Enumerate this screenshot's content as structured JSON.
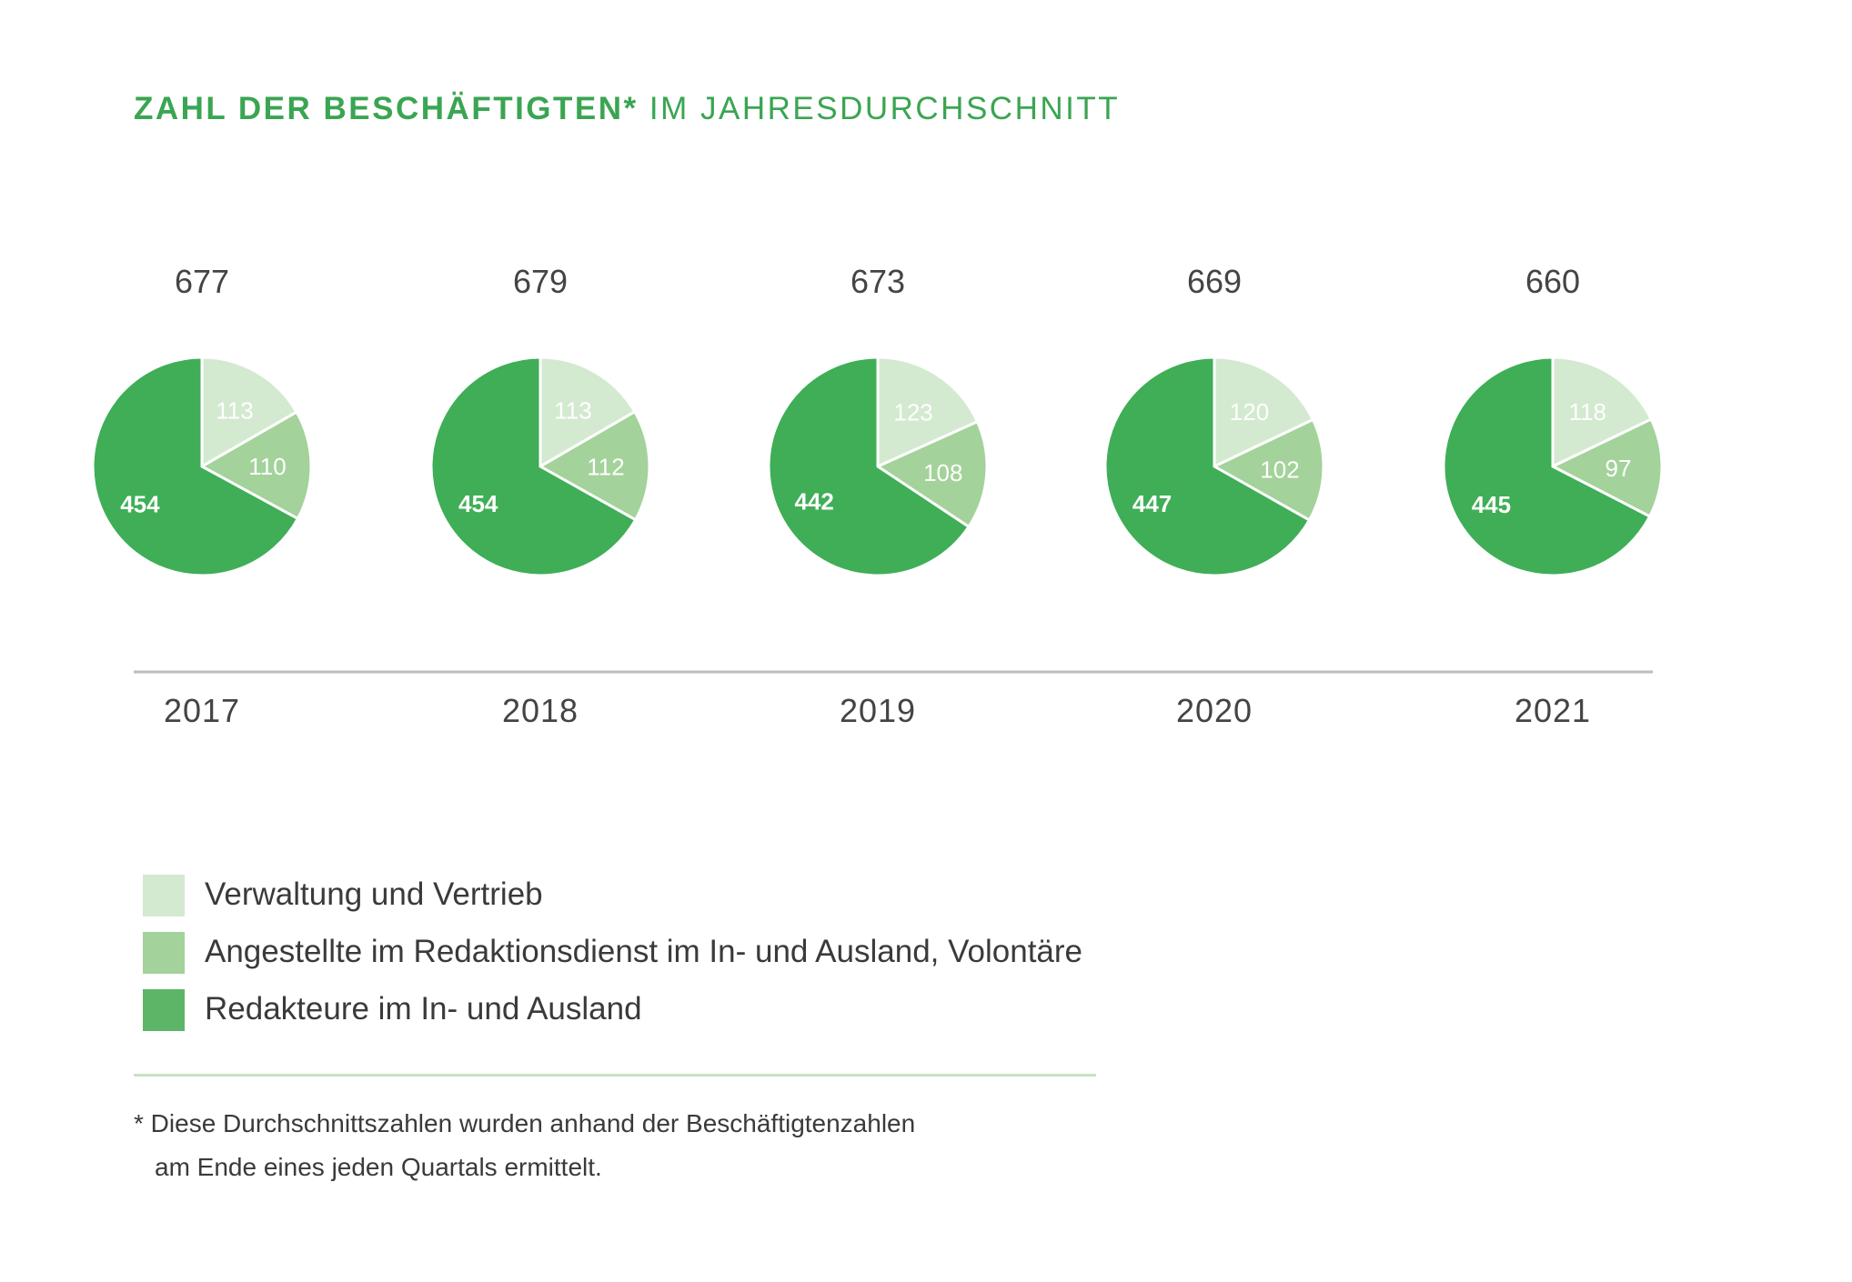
{
  "title": {
    "bold": "ZAHL DER BESCHÄFTIGTEN*",
    "light": "IM JAHRESDURCHSCHNITT"
  },
  "colors": {
    "accent": "#3aa552",
    "verwaltung": "#d4ead0",
    "angestellte": "#a3d29a",
    "redakteure": "#3fae57"
  },
  "chart_data": {
    "type": "pie",
    "title": "ZAHL DER BESCHÄFTIGTEN* IM JAHRESDURCHSCHNITT",
    "series_names": [
      "Verwaltung und Vertrieb",
      "Angestellte im Redaktionsdienst im In- und Ausland, Volontäre",
      "Redakteure im In- und Ausland"
    ],
    "pies": [
      {
        "year": "2017",
        "total": "677",
        "values": [
          113,
          110,
          454
        ]
      },
      {
        "year": "2018",
        "total": "679",
        "values": [
          113,
          112,
          454
        ]
      },
      {
        "year": "2019",
        "total": "673",
        "values": [
          123,
          108,
          442
        ]
      },
      {
        "year": "2020",
        "total": "669",
        "values": [
          120,
          102,
          447
        ]
      },
      {
        "year": "2021",
        "total": "660",
        "values": [
          118,
          97,
          445
        ]
      }
    ]
  },
  "legend": [
    {
      "label": "Verwaltung und Vertrieb",
      "color": "#d4ead0"
    },
    {
      "label": "Angestellte im Redaktionsdienst im In- und Ausland, Volontäre",
      "color": "#a3d29a"
    },
    {
      "label": "Redakteure im In- und Ausland",
      "color": "#5db567"
    }
  ],
  "footnote": {
    "line1": "* Diese Durchschnittszahlen wurden anhand der Beschäftigtenzahlen",
    "line2": "am Ende eines jeden Quartals ermittelt."
  }
}
